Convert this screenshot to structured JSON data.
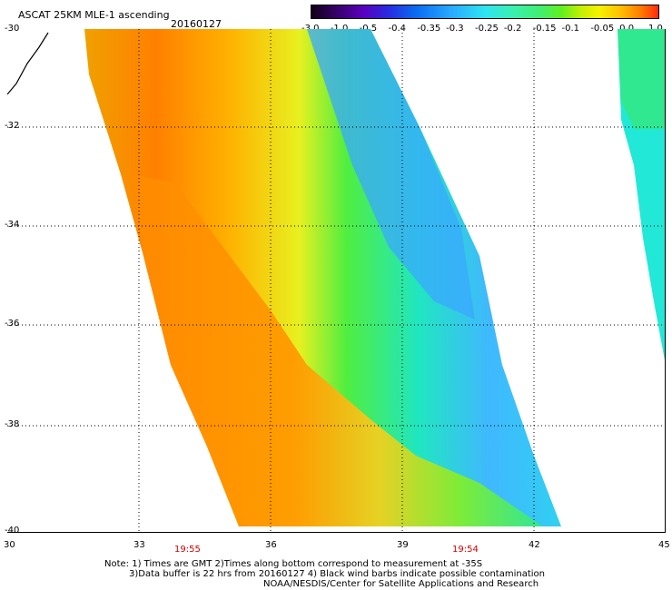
{
  "header": {
    "title": "ASCAT 25KM MLE-1 ascending",
    "date": "20160127"
  },
  "colorbar": {
    "labels": [
      "-3.0",
      "-1.0",
      "-0.5",
      "-0.4",
      "-0.35",
      "-0.3",
      "-0.25",
      "-0.2",
      "-0.15",
      "-0.1",
      "-0.05",
      "0.0",
      "1.0"
    ]
  },
  "map": {
    "lat_labels": [
      "-30",
      "-32",
      "-34",
      "-36",
      "-38",
      "-40"
    ],
    "lon_labels": [
      "30",
      "33",
      "36",
      "39",
      "42",
      "45"
    ],
    "pass_times": [
      "19:55",
      "19:54"
    ]
  },
  "footer": {
    "line1": "Note: 1) Times are GMT 2)Times along bottom correspond to measurement at -35S",
    "line2": "3)Data buffer is 22 hrs from 20160127 4) Black wind barbs indicate possible contamination",
    "line3": "NOAA/NESDIS/Center for Satellite Applications and Research"
  }
}
